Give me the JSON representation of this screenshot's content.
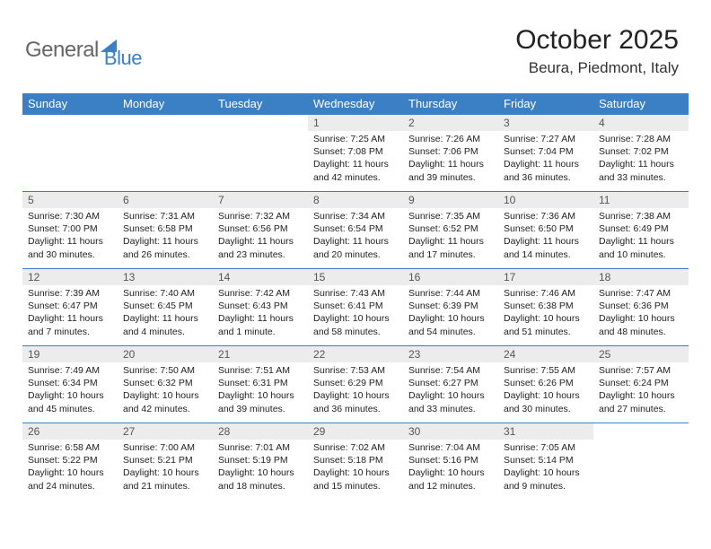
{
  "logo": {
    "part1": "General",
    "part2": "Blue"
  },
  "title": "October 2025",
  "location": "Beura, Piedmont, Italy",
  "colors": {
    "header_bg": "#3b7fc4",
    "header_text": "#ffffff",
    "daynum_bg": "#ececec",
    "text": "#222222",
    "page_bg": "#ffffff"
  },
  "weekdays": [
    "Sunday",
    "Monday",
    "Tuesday",
    "Wednesday",
    "Thursday",
    "Friday",
    "Saturday"
  ],
  "weeks": [
    [
      {
        "day": "",
        "lines": []
      },
      {
        "day": "",
        "lines": []
      },
      {
        "day": "",
        "lines": []
      },
      {
        "day": "1",
        "lines": [
          "Sunrise: 7:25 AM",
          "Sunset: 7:08 PM",
          "Daylight: 11 hours and 42 minutes."
        ]
      },
      {
        "day": "2",
        "lines": [
          "Sunrise: 7:26 AM",
          "Sunset: 7:06 PM",
          "Daylight: 11 hours and 39 minutes."
        ]
      },
      {
        "day": "3",
        "lines": [
          "Sunrise: 7:27 AM",
          "Sunset: 7:04 PM",
          "Daylight: 11 hours and 36 minutes."
        ]
      },
      {
        "day": "4",
        "lines": [
          "Sunrise: 7:28 AM",
          "Sunset: 7:02 PM",
          "Daylight: 11 hours and 33 minutes."
        ]
      }
    ],
    [
      {
        "day": "5",
        "lines": [
          "Sunrise: 7:30 AM",
          "Sunset: 7:00 PM",
          "Daylight: 11 hours and 30 minutes."
        ]
      },
      {
        "day": "6",
        "lines": [
          "Sunrise: 7:31 AM",
          "Sunset: 6:58 PM",
          "Daylight: 11 hours and 26 minutes."
        ]
      },
      {
        "day": "7",
        "lines": [
          "Sunrise: 7:32 AM",
          "Sunset: 6:56 PM",
          "Daylight: 11 hours and 23 minutes."
        ]
      },
      {
        "day": "8",
        "lines": [
          "Sunrise: 7:34 AM",
          "Sunset: 6:54 PM",
          "Daylight: 11 hours and 20 minutes."
        ]
      },
      {
        "day": "9",
        "lines": [
          "Sunrise: 7:35 AM",
          "Sunset: 6:52 PM",
          "Daylight: 11 hours and 17 minutes."
        ]
      },
      {
        "day": "10",
        "lines": [
          "Sunrise: 7:36 AM",
          "Sunset: 6:50 PM",
          "Daylight: 11 hours and 14 minutes."
        ]
      },
      {
        "day": "11",
        "lines": [
          "Sunrise: 7:38 AM",
          "Sunset: 6:49 PM",
          "Daylight: 11 hours and 10 minutes."
        ]
      }
    ],
    [
      {
        "day": "12",
        "lines": [
          "Sunrise: 7:39 AM",
          "Sunset: 6:47 PM",
          "Daylight: 11 hours and 7 minutes."
        ]
      },
      {
        "day": "13",
        "lines": [
          "Sunrise: 7:40 AM",
          "Sunset: 6:45 PM",
          "Daylight: 11 hours and 4 minutes."
        ]
      },
      {
        "day": "14",
        "lines": [
          "Sunrise: 7:42 AM",
          "Sunset: 6:43 PM",
          "Daylight: 11 hours and 1 minute."
        ]
      },
      {
        "day": "15",
        "lines": [
          "Sunrise: 7:43 AM",
          "Sunset: 6:41 PM",
          "Daylight: 10 hours and 58 minutes."
        ]
      },
      {
        "day": "16",
        "lines": [
          "Sunrise: 7:44 AM",
          "Sunset: 6:39 PM",
          "Daylight: 10 hours and 54 minutes."
        ]
      },
      {
        "day": "17",
        "lines": [
          "Sunrise: 7:46 AM",
          "Sunset: 6:38 PM",
          "Daylight: 10 hours and 51 minutes."
        ]
      },
      {
        "day": "18",
        "lines": [
          "Sunrise: 7:47 AM",
          "Sunset: 6:36 PM",
          "Daylight: 10 hours and 48 minutes."
        ]
      }
    ],
    [
      {
        "day": "19",
        "lines": [
          "Sunrise: 7:49 AM",
          "Sunset: 6:34 PM",
          "Daylight: 10 hours and 45 minutes."
        ]
      },
      {
        "day": "20",
        "lines": [
          "Sunrise: 7:50 AM",
          "Sunset: 6:32 PM",
          "Daylight: 10 hours and 42 minutes."
        ]
      },
      {
        "day": "21",
        "lines": [
          "Sunrise: 7:51 AM",
          "Sunset: 6:31 PM",
          "Daylight: 10 hours and 39 minutes."
        ]
      },
      {
        "day": "22",
        "lines": [
          "Sunrise: 7:53 AM",
          "Sunset: 6:29 PM",
          "Daylight: 10 hours and 36 minutes."
        ]
      },
      {
        "day": "23",
        "lines": [
          "Sunrise: 7:54 AM",
          "Sunset: 6:27 PM",
          "Daylight: 10 hours and 33 minutes."
        ]
      },
      {
        "day": "24",
        "lines": [
          "Sunrise: 7:55 AM",
          "Sunset: 6:26 PM",
          "Daylight: 10 hours and 30 minutes."
        ]
      },
      {
        "day": "25",
        "lines": [
          "Sunrise: 7:57 AM",
          "Sunset: 6:24 PM",
          "Daylight: 10 hours and 27 minutes."
        ]
      }
    ],
    [
      {
        "day": "26",
        "lines": [
          "Sunrise: 6:58 AM",
          "Sunset: 5:22 PM",
          "Daylight: 10 hours and 24 minutes."
        ]
      },
      {
        "day": "27",
        "lines": [
          "Sunrise: 7:00 AM",
          "Sunset: 5:21 PM",
          "Daylight: 10 hours and 21 minutes."
        ]
      },
      {
        "day": "28",
        "lines": [
          "Sunrise: 7:01 AM",
          "Sunset: 5:19 PM",
          "Daylight: 10 hours and 18 minutes."
        ]
      },
      {
        "day": "29",
        "lines": [
          "Sunrise: 7:02 AM",
          "Sunset: 5:18 PM",
          "Daylight: 10 hours and 15 minutes."
        ]
      },
      {
        "day": "30",
        "lines": [
          "Sunrise: 7:04 AM",
          "Sunset: 5:16 PM",
          "Daylight: 10 hours and 12 minutes."
        ]
      },
      {
        "day": "31",
        "lines": [
          "Sunrise: 7:05 AM",
          "Sunset: 5:14 PM",
          "Daylight: 10 hours and 9 minutes."
        ]
      },
      {
        "day": "",
        "lines": []
      }
    ]
  ]
}
